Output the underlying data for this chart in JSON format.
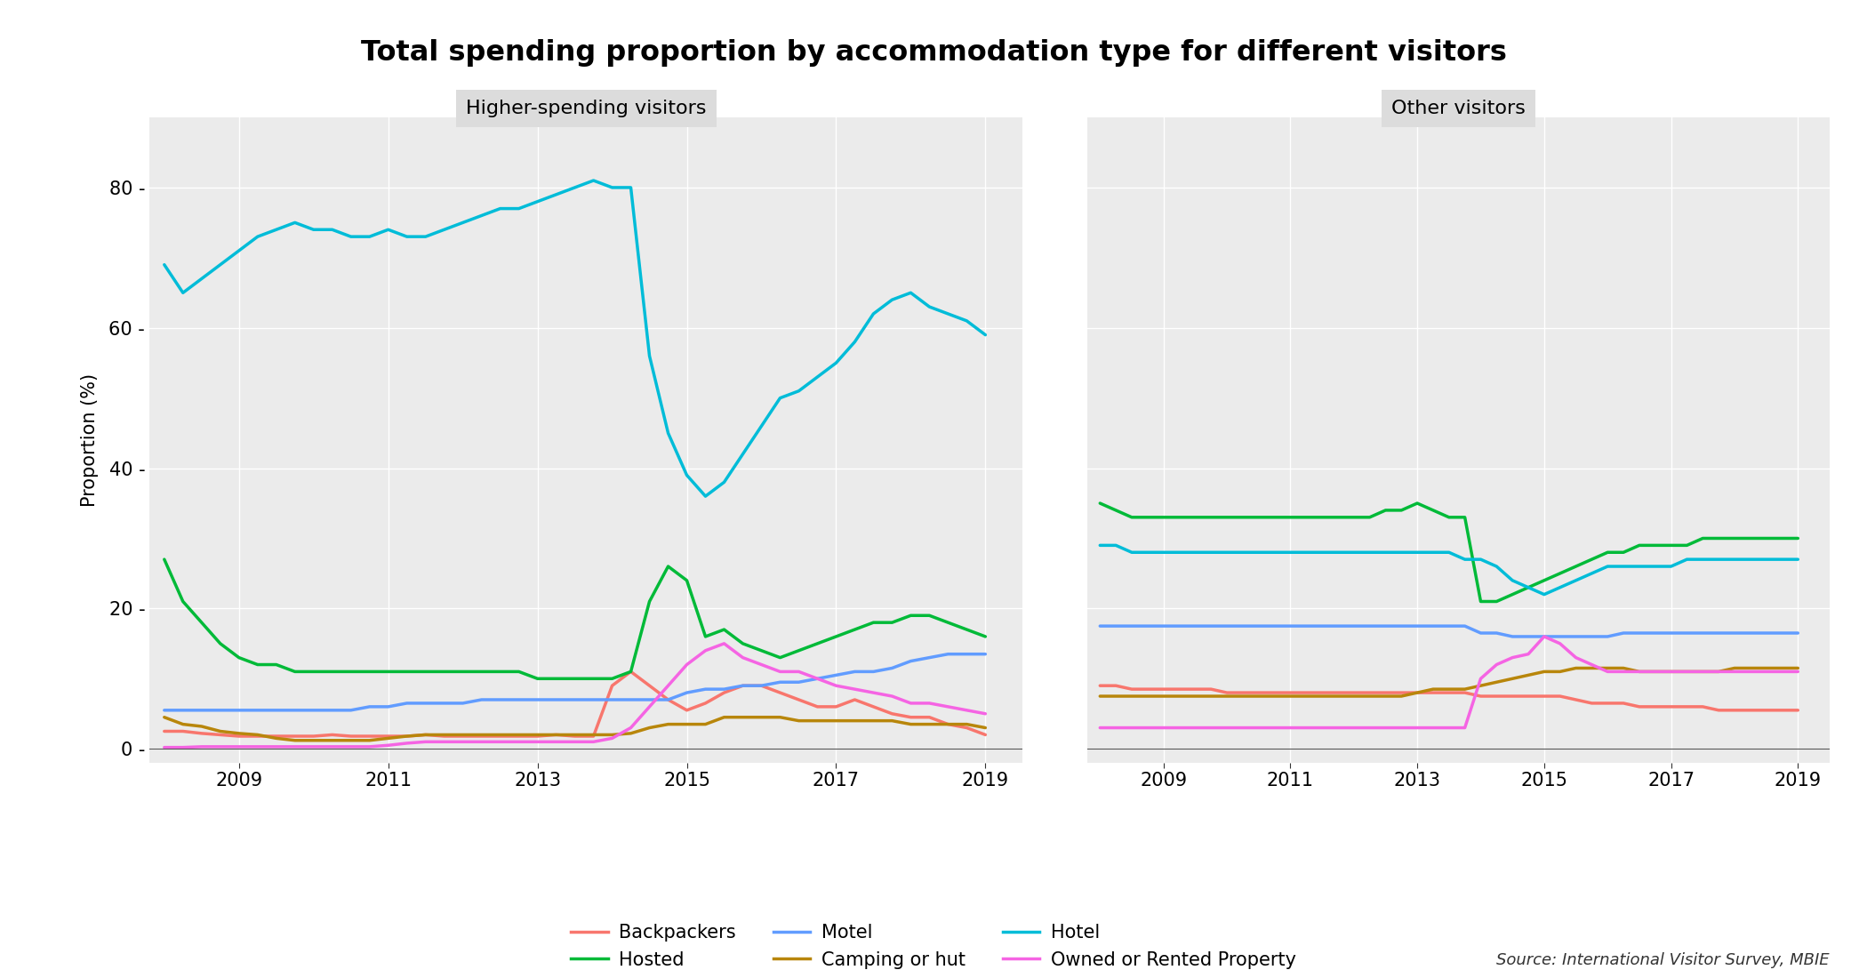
{
  "title": "Total spending proportion by accommodation type for different visitors",
  "panels": [
    "Higher-spending visitors",
    "Other visitors"
  ],
  "ylabel": "Proportion (%)",
  "source": "Source: International Visitor Survey, MBIE",
  "colors": {
    "Backpackers": "#F8766D",
    "Camping or hut": "#B8860B",
    "Hosted": "#00BA38",
    "Hotel": "#00BCD8",
    "Motel": "#619CFF",
    "Owned or Rented Property": "#F564E3"
  },
  "higher_spending": {
    "years": [
      2008.0,
      2008.25,
      2008.5,
      2008.75,
      2009.0,
      2009.25,
      2009.5,
      2009.75,
      2010.0,
      2010.25,
      2010.5,
      2010.75,
      2011.0,
      2011.25,
      2011.5,
      2011.75,
      2012.0,
      2012.25,
      2012.5,
      2012.75,
      2013.0,
      2013.25,
      2013.5,
      2013.75,
      2014.0,
      2014.25,
      2014.5,
      2014.75,
      2015.0,
      2015.25,
      2015.5,
      2015.75,
      2016.0,
      2016.25,
      2016.5,
      2016.75,
      2017.0,
      2017.25,
      2017.5,
      2017.75,
      2018.0,
      2018.25,
      2018.5,
      2018.75,
      2019.0
    ],
    "Backpackers": [
      2.5,
      2.5,
      2.2,
      2.0,
      1.8,
      1.8,
      1.8,
      1.8,
      1.8,
      2.0,
      1.8,
      1.8,
      1.8,
      1.8,
      2.0,
      1.8,
      1.8,
      1.8,
      1.8,
      1.8,
      1.8,
      2.0,
      1.8,
      1.8,
      9.0,
      11.0,
      9.0,
      7.0,
      5.5,
      6.5,
      8.0,
      9.0,
      9.0,
      8.0,
      7.0,
      6.0,
      6.0,
      7.0,
      6.0,
      5.0,
      4.5,
      4.5,
      3.5,
      3.0,
      2.0
    ],
    "Camping or hut": [
      4.5,
      3.5,
      3.2,
      2.5,
      2.2,
      2.0,
      1.5,
      1.2,
      1.2,
      1.2,
      1.2,
      1.2,
      1.5,
      1.8,
      2.0,
      2.0,
      2.0,
      2.0,
      2.0,
      2.0,
      2.0,
      2.0,
      2.0,
      2.0,
      2.0,
      2.2,
      3.0,
      3.5,
      3.5,
      3.5,
      4.5,
      4.5,
      4.5,
      4.5,
      4.0,
      4.0,
      4.0,
      4.0,
      4.0,
      4.0,
      3.5,
      3.5,
      3.5,
      3.5,
      3.0
    ],
    "Hosted": [
      27,
      21,
      18,
      15,
      13,
      12,
      12,
      11,
      11,
      11,
      11,
      11,
      11,
      11,
      11,
      11,
      11,
      11,
      11,
      11,
      10,
      10,
      10,
      10,
      10,
      11,
      21,
      26,
      24,
      16,
      17,
      15,
      14,
      13,
      14,
      15,
      16,
      17,
      18,
      18,
      19,
      19,
      18,
      17,
      16
    ],
    "Hotel": [
      69,
      65,
      67,
      69,
      71,
      73,
      74,
      75,
      74,
      74,
      73,
      73,
      74,
      73,
      73,
      74,
      75,
      76,
      77,
      77,
      78,
      79,
      80,
      81,
      80,
      80,
      56,
      45,
      39,
      36,
      38,
      42,
      46,
      50,
      51,
      53,
      55,
      58,
      62,
      64,
      65,
      63,
      62,
      61,
      59
    ],
    "Motel": [
      5.5,
      5.5,
      5.5,
      5.5,
      5.5,
      5.5,
      5.5,
      5.5,
      5.5,
      5.5,
      5.5,
      6.0,
      6.0,
      6.5,
      6.5,
      6.5,
      6.5,
      7.0,
      7.0,
      7.0,
      7.0,
      7.0,
      7.0,
      7.0,
      7.0,
      7.0,
      7.0,
      7.0,
      8.0,
      8.5,
      8.5,
      9.0,
      9.0,
      9.5,
      9.5,
      10.0,
      10.5,
      11.0,
      11.0,
      11.5,
      12.5,
      13.0,
      13.5,
      13.5,
      13.5
    ],
    "Owned or Rented Property": [
      0.2,
      0.2,
      0.3,
      0.3,
      0.3,
      0.3,
      0.3,
      0.3,
      0.3,
      0.3,
      0.3,
      0.3,
      0.5,
      0.8,
      1.0,
      1.0,
      1.0,
      1.0,
      1.0,
      1.0,
      1.0,
      1.0,
      1.0,
      1.0,
      1.5,
      3.0,
      6.0,
      9.0,
      12.0,
      14.0,
      15.0,
      13.0,
      12.0,
      11.0,
      11.0,
      10.0,
      9.0,
      8.5,
      8.0,
      7.5,
      6.5,
      6.5,
      6.0,
      5.5,
      5.0
    ]
  },
  "other_visitors": {
    "years": [
      2008.0,
      2008.25,
      2008.5,
      2008.75,
      2009.0,
      2009.25,
      2009.5,
      2009.75,
      2010.0,
      2010.25,
      2010.5,
      2010.75,
      2011.0,
      2011.25,
      2011.5,
      2011.75,
      2012.0,
      2012.25,
      2012.5,
      2012.75,
      2013.0,
      2013.25,
      2013.5,
      2013.75,
      2014.0,
      2014.25,
      2014.5,
      2014.75,
      2015.0,
      2015.25,
      2015.5,
      2015.75,
      2016.0,
      2016.25,
      2016.5,
      2016.75,
      2017.0,
      2017.25,
      2017.5,
      2017.75,
      2018.0,
      2018.25,
      2018.5,
      2018.75,
      2019.0
    ],
    "Backpackers": [
      9.0,
      9.0,
      8.5,
      8.5,
      8.5,
      8.5,
      8.5,
      8.5,
      8.0,
      8.0,
      8.0,
      8.0,
      8.0,
      8.0,
      8.0,
      8.0,
      8.0,
      8.0,
      8.0,
      8.0,
      8.0,
      8.0,
      8.0,
      8.0,
      7.5,
      7.5,
      7.5,
      7.5,
      7.5,
      7.5,
      7.0,
      6.5,
      6.5,
      6.5,
      6.0,
      6.0,
      6.0,
      6.0,
      6.0,
      5.5,
      5.5,
      5.5,
      5.5,
      5.5,
      5.5
    ],
    "Camping or hut": [
      7.5,
      7.5,
      7.5,
      7.5,
      7.5,
      7.5,
      7.5,
      7.5,
      7.5,
      7.5,
      7.5,
      7.5,
      7.5,
      7.5,
      7.5,
      7.5,
      7.5,
      7.5,
      7.5,
      7.5,
      8.0,
      8.5,
      8.5,
      8.5,
      9.0,
      9.5,
      10.0,
      10.5,
      11.0,
      11.0,
      11.5,
      11.5,
      11.5,
      11.5,
      11.0,
      11.0,
      11.0,
      11.0,
      11.0,
      11.0,
      11.5,
      11.5,
      11.5,
      11.5,
      11.5
    ],
    "Hosted": [
      35,
      34,
      33,
      33,
      33,
      33,
      33,
      33,
      33,
      33,
      33,
      33,
      33,
      33,
      33,
      33,
      33,
      33,
      34,
      34,
      35,
      34,
      33,
      33,
      21,
      21,
      22,
      23,
      24,
      25,
      26,
      27,
      28,
      28,
      29,
      29,
      29,
      29,
      30,
      30,
      30,
      30,
      30,
      30,
      30
    ],
    "Hotel": [
      29,
      29,
      28,
      28,
      28,
      28,
      28,
      28,
      28,
      28,
      28,
      28,
      28,
      28,
      28,
      28,
      28,
      28,
      28,
      28,
      28,
      28,
      28,
      27,
      27,
      26,
      24,
      23,
      22,
      23,
      24,
      25,
      26,
      26,
      26,
      26,
      26,
      27,
      27,
      27,
      27,
      27,
      27,
      27,
      27
    ],
    "Motel": [
      17.5,
      17.5,
      17.5,
      17.5,
      17.5,
      17.5,
      17.5,
      17.5,
      17.5,
      17.5,
      17.5,
      17.5,
      17.5,
      17.5,
      17.5,
      17.5,
      17.5,
      17.5,
      17.5,
      17.5,
      17.5,
      17.5,
      17.5,
      17.5,
      16.5,
      16.5,
      16.0,
      16.0,
      16.0,
      16.0,
      16.0,
      16.0,
      16.0,
      16.5,
      16.5,
      16.5,
      16.5,
      16.5,
      16.5,
      16.5,
      16.5,
      16.5,
      16.5,
      16.5,
      16.5
    ],
    "Owned or Rented Property": [
      3.0,
      3.0,
      3.0,
      3.0,
      3.0,
      3.0,
      3.0,
      3.0,
      3.0,
      3.0,
      3.0,
      3.0,
      3.0,
      3.0,
      3.0,
      3.0,
      3.0,
      3.0,
      3.0,
      3.0,
      3.0,
      3.0,
      3.0,
      3.0,
      10.0,
      12.0,
      13.0,
      13.5,
      16.0,
      15.0,
      13.0,
      12.0,
      11.0,
      11.0,
      11.0,
      11.0,
      11.0,
      11.0,
      11.0,
      11.0,
      11.0,
      11.0,
      11.0,
      11.0,
      11.0
    ]
  },
  "ylim": [
    -2,
    90
  ],
  "yticks": [
    0,
    20,
    40,
    60,
    80
  ],
  "xticks": [
    2009,
    2011,
    2013,
    2015,
    2017,
    2019
  ],
  "panel_bg": "#ebebeb",
  "grid_color": "#ffffff",
  "linewidth": 2.5,
  "legend_order": [
    "Backpackers",
    "Hosted",
    "Motel",
    "Camping or hut",
    "Hotel",
    "Owned or Rented Property"
  ]
}
